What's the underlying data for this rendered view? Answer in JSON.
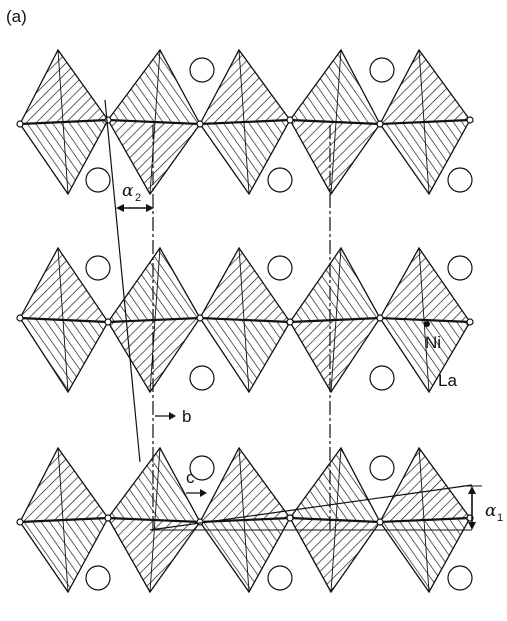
{
  "figure": {
    "panel_label": "(a)",
    "labels": {
      "alpha2": "α",
      "alpha2_sub": "2",
      "alpha1": "α",
      "alpha1_sub": "1",
      "ni": "Ni",
      "la": "La",
      "b": "b",
      "c": "c"
    },
    "colors": {
      "ink": "#111111",
      "background": "#ffffff"
    }
  }
}
